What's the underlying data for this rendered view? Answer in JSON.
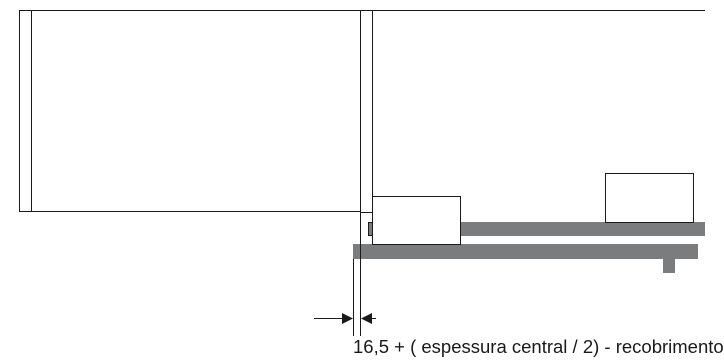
{
  "diagram": {
    "dimension_label": "16,5 + ( espessura central / 2) - recobrimento",
    "colors": {
      "outline": "#1a1a1a",
      "rail_fill": "#7b7c7e",
      "block_fill": "#ffffff"
    }
  }
}
